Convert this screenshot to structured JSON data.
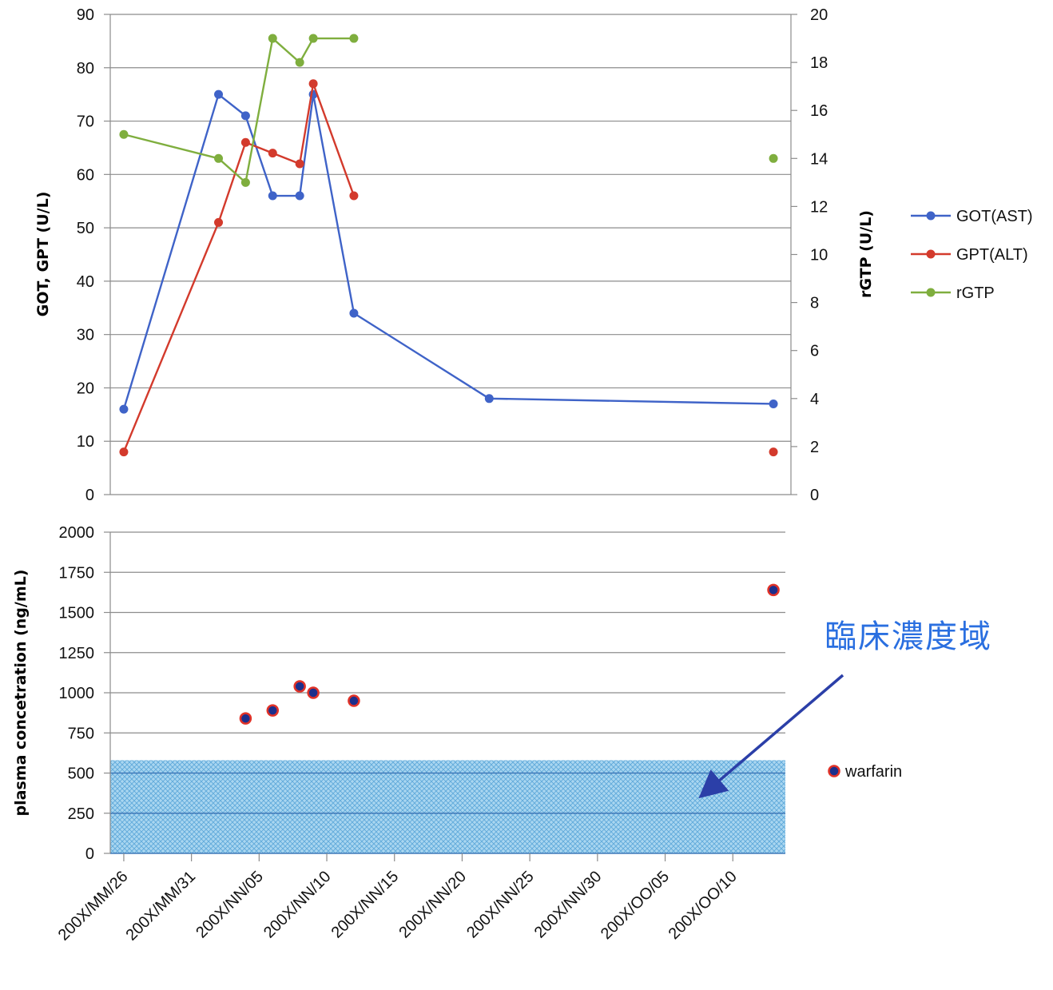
{
  "chart_data": [
    {
      "type": "line",
      "xlim": [
        "200X/MM/25",
        "200X/OO/13"
      ],
      "ylabel": "GOT, GPT (U/L)",
      "ylim": [
        0,
        90
      ],
      "yticks": [
        "0",
        "10",
        "20",
        "30",
        "40",
        "50",
        "60",
        "70",
        "80",
        "90"
      ],
      "y2label": "rGTP (U/L)",
      "y2lim": [
        0,
        20
      ],
      "y2ticks": [
        "0",
        "2",
        "4",
        "6",
        "8",
        "10",
        "12",
        "14",
        "16",
        "18",
        "20"
      ],
      "grid": true,
      "legend_position": "right",
      "series": [
        {
          "name": "GOT(AST)",
          "axis": "left",
          "color": "#3f63c8",
          "points": [
            {
              "x": "200X/MM/26",
              "y": 16
            },
            {
              "x": "200X/NN/02",
              "y": 75
            },
            {
              "x": "200X/NN/04",
              "y": 71
            },
            {
              "x": "200X/NN/06",
              "y": 56
            },
            {
              "x": "200X/NN/08",
              "y": 56
            },
            {
              "x": "200X/NN/09",
              "y": 75
            },
            {
              "x": "200X/NN/12",
              "y": 34
            },
            {
              "x": "200X/NN/22",
              "y": 18
            },
            {
              "x": "200X/OO/13",
              "y": 17
            }
          ]
        },
        {
          "name": "GPT(ALT)",
          "axis": "left",
          "color": "#d33a2c",
          "points": [
            {
              "x": "200X/MM/26",
              "y": 8
            },
            {
              "x": "200X/NN/02",
              "y": 51
            },
            {
              "x": "200X/NN/04",
              "y": 66
            },
            {
              "x": "200X/NN/06",
              "y": 64
            },
            {
              "x": "200X/NN/08",
              "y": 62
            },
            {
              "x": "200X/NN/09",
              "y": 77
            },
            {
              "x": "200X/NN/12",
              "y": 56
            },
            {
              "x": "200X/OO/13",
              "y": 8,
              "isolated": true
            }
          ]
        },
        {
          "name": "rGTP",
          "axis": "right",
          "color": "#7fae3e",
          "points": [
            {
              "x": "200X/MM/26",
              "y": 15
            },
            {
              "x": "200X/NN/02",
              "y": 14
            },
            {
              "x": "200X/NN/04",
              "y": 13
            },
            {
              "x": "200X/NN/06",
              "y": 19
            },
            {
              "x": "200X/NN/08",
              "y": 18
            },
            {
              "x": "200X/NN/09",
              "y": 19
            },
            {
              "x": "200X/NN/12",
              "y": 19
            },
            {
              "x": "200X/OO/13",
              "y": 14,
              "isolated": true
            }
          ]
        }
      ]
    },
    {
      "type": "scatter",
      "ylabel": "plasma concetration (ng/mL)",
      "ylim": [
        0,
        2000
      ],
      "yticks": [
        "0",
        "250",
        "500",
        "750",
        "1000",
        "1250",
        "1500",
        "1750",
        "2000"
      ],
      "xticks": [
        "200X/MM/26",
        "200X/MM/31",
        "200X/NN/05",
        "200X/NN/10",
        "200X/NN/15",
        "200X/NN/20",
        "200X/NN/25",
        "200X/NN/30",
        "200X/OO/05",
        "200X/OO/10"
      ],
      "grid": true,
      "legend_position": "right",
      "shaded_band": {
        "from": 0,
        "to": 580,
        "label": "臨床濃度域",
        "color": "#5fb8e6"
      },
      "series": [
        {
          "name": "warfarin",
          "fill": "#1c2f8c",
          "stroke": "#e03228",
          "points": [
            {
              "x": "200X/NN/04",
              "y": 840
            },
            {
              "x": "200X/NN/06",
              "y": 890
            },
            {
              "x": "200X/NN/08",
              "y": 1040
            },
            {
              "x": "200X/NN/09",
              "y": 1000
            },
            {
              "x": "200X/NN/12",
              "y": 950
            },
            {
              "x": "200X/OO/13",
              "y": 1640
            }
          ]
        }
      ]
    }
  ]
}
